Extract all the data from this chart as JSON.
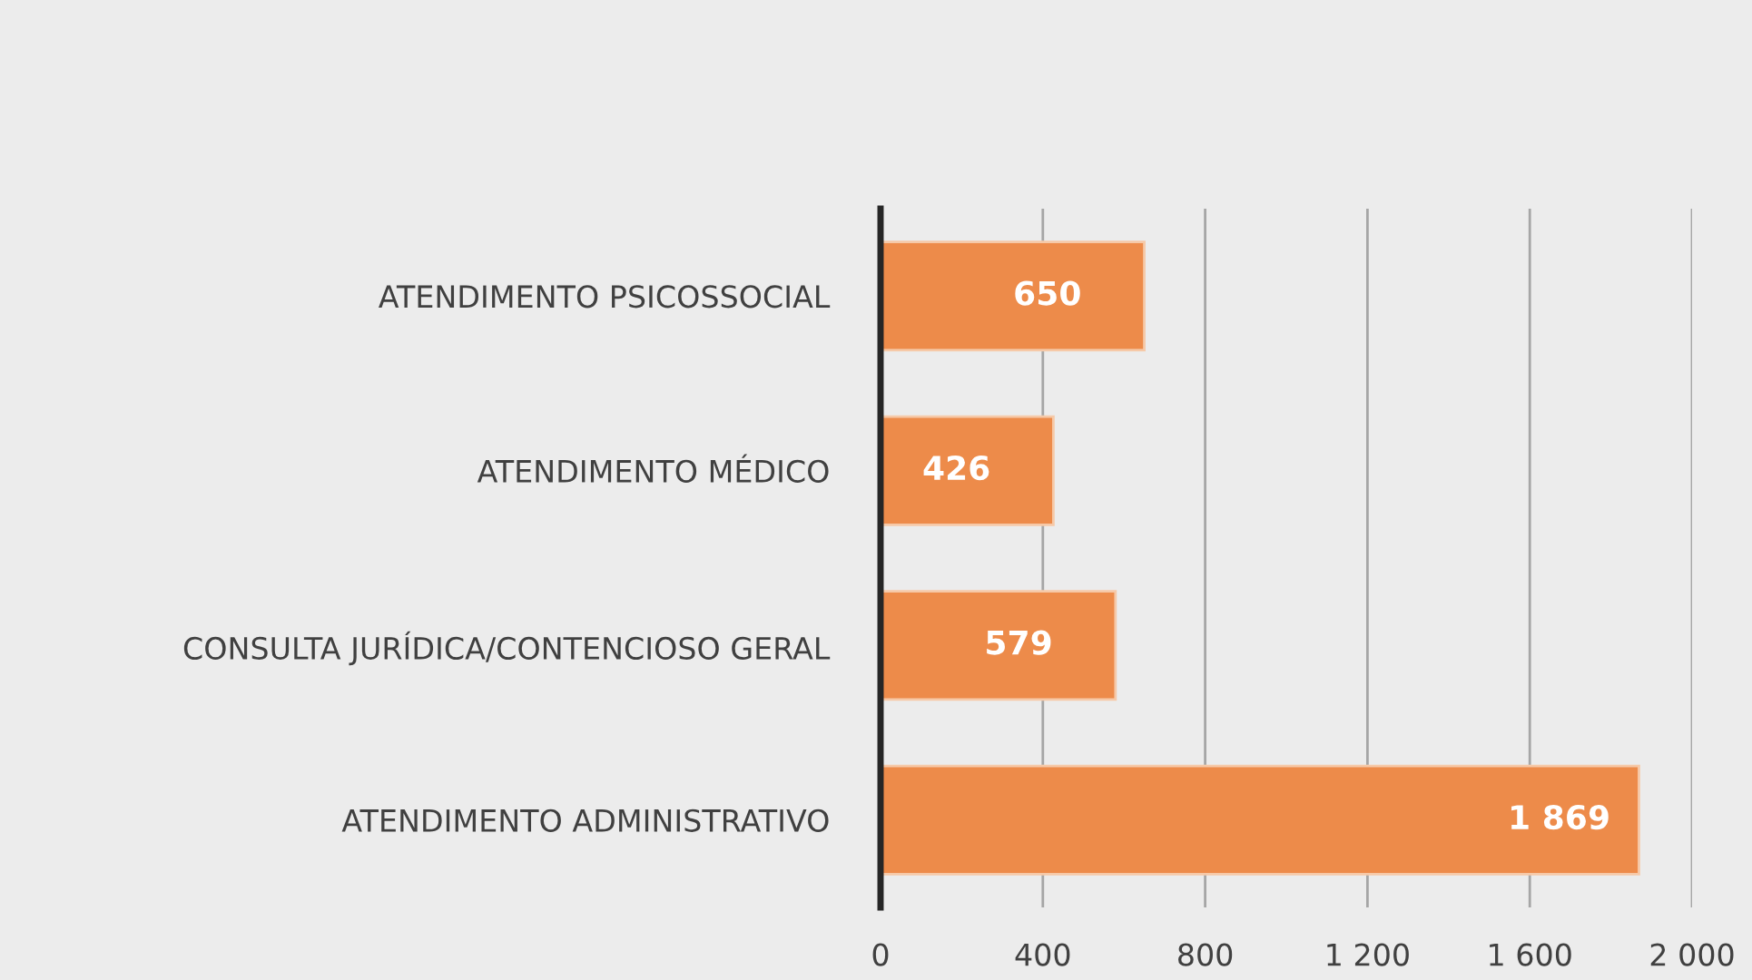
{
  "chart_data": {
    "type": "bar",
    "orientation": "horizontal",
    "categories": [
      "ATENDIMENTO PSICOSSOCIAL",
      "ATENDIMENTO MÉDICO",
      "CONSULTA JURÍDICA/CONTENCIOSO GERAL",
      "ATENDIMENTO ADMINISTRATIVO"
    ],
    "values": [
      650,
      426,
      579,
      1869
    ],
    "value_labels": [
      "650",
      "426",
      "579",
      "1 869"
    ],
    "color": "#ed8b4a",
    "xlim": [
      0,
      2000
    ],
    "xticks": [
      0,
      {
        "value": 400,
        "label": "400"
      },
      {
        "value": 800,
        "label": "800"
      },
      {
        "value": 1200,
        "label": "1 200"
      },
      {
        "value": 1600,
        "label": "1 600"
      },
      {
        "value": 2000,
        "label": "2 000"
      }
    ],
    "grid": "x"
  }
}
